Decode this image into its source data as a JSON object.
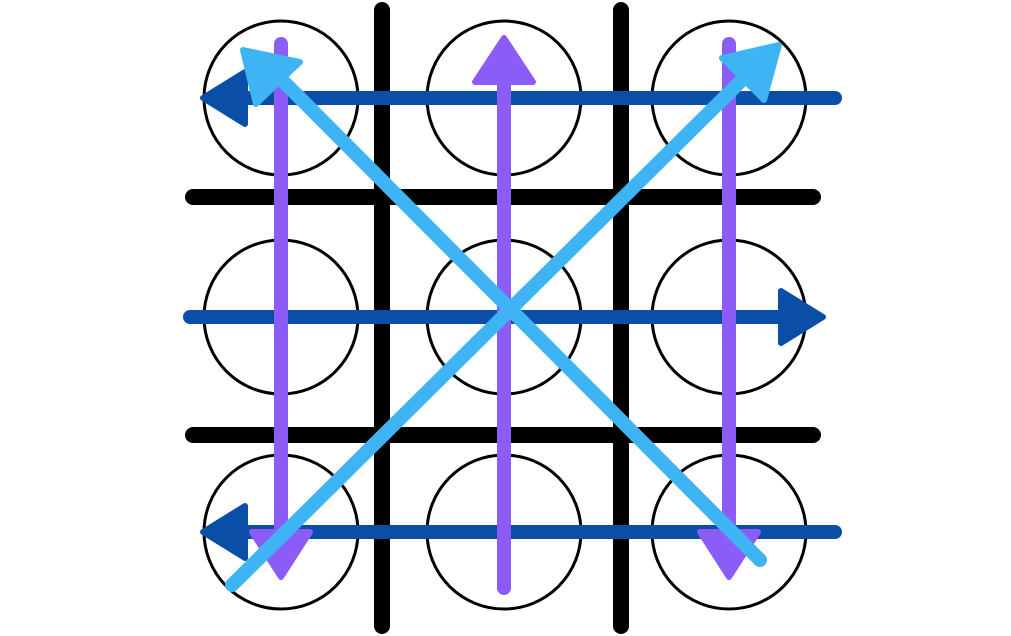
{
  "colors": {
    "background": "#ffffff",
    "grid": "#000000",
    "cell_outline": "#000000",
    "row_arrow": "#0a4ea8",
    "column_arrow": "#8b5cf6",
    "diagonal_arrow": "#3fb4f4"
  },
  "grid": {
    "rows": 3,
    "cols": 3
  },
  "arrows": [
    {
      "name": "row-1-arrow",
      "kind": "row",
      "from": "right",
      "to": "left"
    },
    {
      "name": "row-2-arrow",
      "kind": "row",
      "from": "left",
      "to": "right"
    },
    {
      "name": "row-3-arrow",
      "kind": "row",
      "from": "right",
      "to": "left"
    },
    {
      "name": "column-1-arrow",
      "kind": "column",
      "from": "top",
      "to": "bottom"
    },
    {
      "name": "column-2-arrow",
      "kind": "column",
      "from": "bottom",
      "to": "top"
    },
    {
      "name": "column-3-arrow",
      "kind": "column",
      "from": "top",
      "to": "bottom"
    },
    {
      "name": "diagonal-main-arrow",
      "kind": "diagonal",
      "from": "bottom-right",
      "to": "top-left"
    },
    {
      "name": "diagonal-anti-arrow",
      "kind": "diagonal",
      "from": "bottom-left",
      "to": "top-right"
    }
  ]
}
